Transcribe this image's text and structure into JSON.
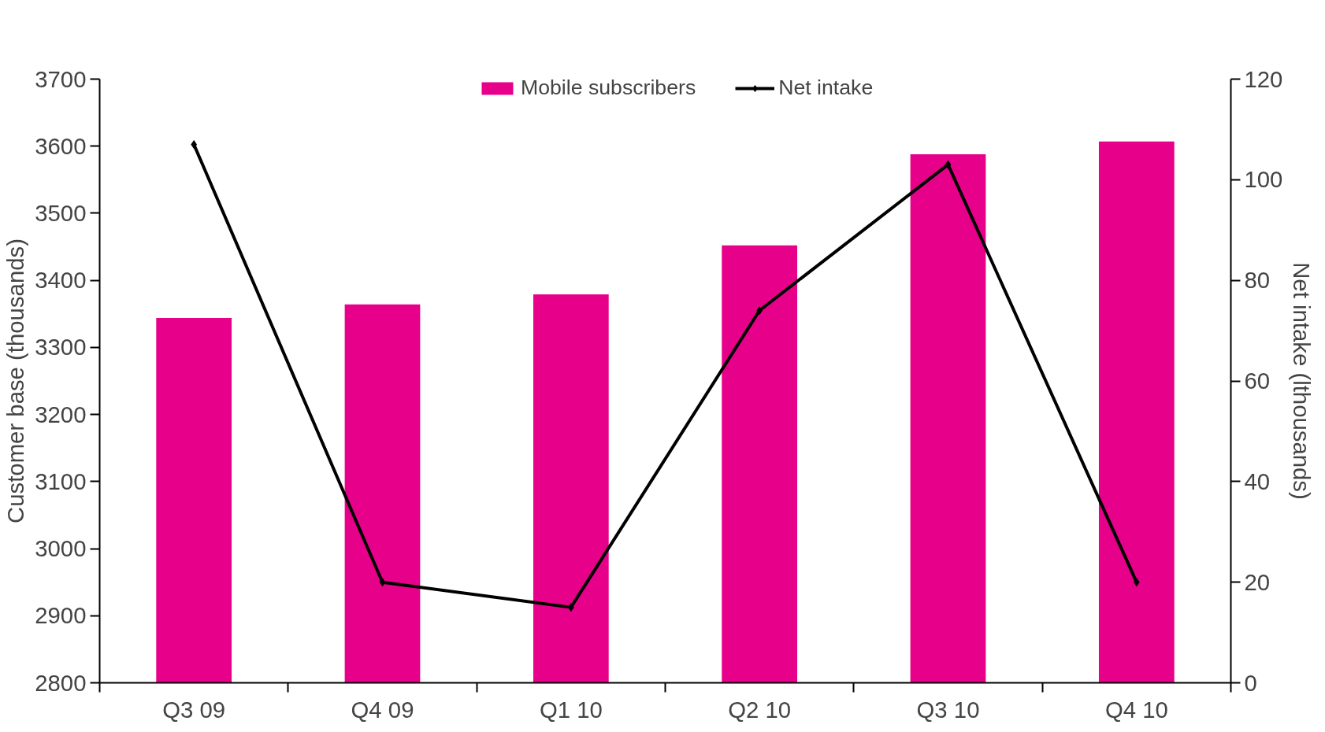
{
  "chart_data": {
    "type": "bar",
    "categories": [
      "Q3 09",
      "Q4 09",
      "Q1 10",
      "Q2 10",
      "Q3 10",
      "Q4 10"
    ],
    "ylabel": "Customer base (thousands)",
    "y2label": "Net intake (lthousands)",
    "ylim": [
      2800,
      3700
    ],
    "yticks": [
      2800,
      2900,
      3000,
      3100,
      3200,
      3300,
      3400,
      3500,
      3600,
      3700
    ],
    "y2lim": [
      0,
      120
    ],
    "y2ticks": [
      0,
      20,
      40,
      60,
      80,
      100,
      120
    ],
    "legend": "top",
    "grid": false,
    "series": [
      {
        "name": "Mobile subscribers",
        "color": "#e6008a",
        "values": [
          3344,
          3364,
          3379,
          3452,
          3588,
          3607
        ]
      },
      {
        "name": "Net intake",
        "type": "line",
        "axis": "y2",
        "color": "#000000",
        "marker": "diamond",
        "line_style": "solid",
        "values": [
          107,
          20,
          15,
          74,
          103,
          20
        ]
      }
    ]
  }
}
